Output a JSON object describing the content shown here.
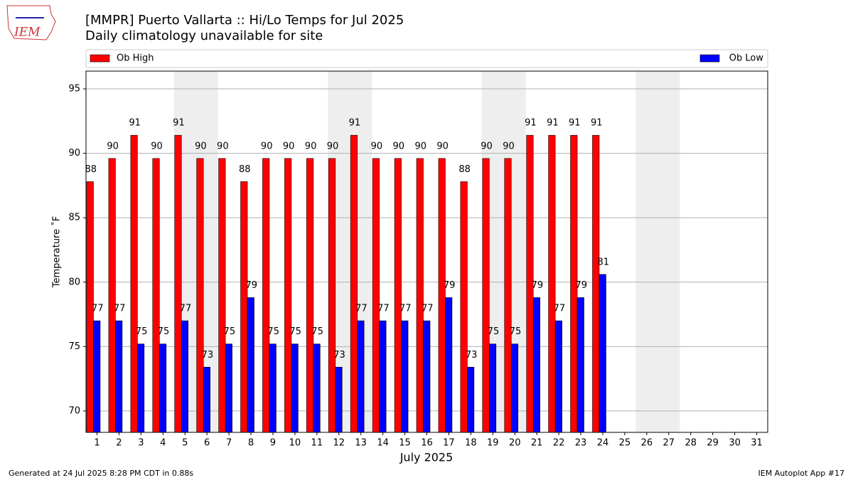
{
  "logo_text": "IEM",
  "chart_data": {
    "type": "bar",
    "title": "[MMPR] Puerto Vallarta :: Hi/Lo Temps for Jul 2025",
    "subtitle": "Daily climatology unavailable for site",
    "ylabel": "Temperature ˚F",
    "xlabel": "July 2025",
    "footer_left": "Generated at 24 Jul 2025 8:28 PM CDT in 0.88s",
    "footer_right": "IEM Autoplot App #17",
    "categories": [
      "1",
      "2",
      "3",
      "4",
      "5",
      "6",
      "7",
      "8",
      "9",
      "10",
      "11",
      "12",
      "13",
      "14",
      "15",
      "16",
      "17",
      "18",
      "19",
      "20",
      "21",
      "22",
      "23",
      "24",
      "25",
      "26",
      "27",
      "28",
      "29",
      "30",
      "31"
    ],
    "series": [
      {
        "name": "Ob High",
        "color": "#ff0000",
        "values": [
          87.8,
          89.6,
          91.4,
          89.6,
          91.4,
          89.6,
          89.6,
          87.8,
          89.6,
          89.6,
          89.6,
          89.6,
          91.4,
          89.6,
          89.6,
          89.6,
          89.6,
          87.8,
          89.6,
          89.6,
          91.4,
          91.4,
          91.4,
          91.4,
          null,
          null,
          null,
          null,
          null,
          null,
          null
        ],
        "value_labels": [
          "88",
          "90",
          "91",
          "90",
          "91",
          "90",
          "90",
          "88",
          "90",
          "90",
          "90",
          "90",
          "91",
          "90",
          "90",
          "90",
          "90",
          "88",
          "90",
          "90",
          "91",
          "91",
          "91",
          "91",
          null,
          null,
          null,
          null,
          null,
          null,
          null
        ]
      },
      {
        "name": "Ob Low",
        "color": "#0000ff",
        "values": [
          77,
          77,
          75.2,
          75.2,
          77,
          73.4,
          75.2,
          78.8,
          75.2,
          75.2,
          75.2,
          73.4,
          77,
          77,
          77,
          77,
          78.8,
          73.4,
          75.2,
          75.2,
          78.8,
          77,
          78.8,
          80.6,
          null,
          null,
          null,
          null,
          null,
          null,
          null
        ],
        "value_labels": [
          "77",
          "77",
          "75",
          "75",
          "77",
          "73",
          "75",
          "79",
          "75",
          "75",
          "75",
          "73",
          "77",
          "77",
          "77",
          "77",
          "79",
          "73",
          "75",
          "75",
          "79",
          "77",
          "79",
          "81",
          null,
          null,
          null,
          null,
          null,
          null,
          null
        ]
      }
    ],
    "shaded_categories": [
      "5",
      "6",
      "12",
      "13",
      "19",
      "20",
      "26",
      "27"
    ],
    "shade_color": "#eeeeee",
    "ylim": [
      68.34,
      96.38
    ],
    "yticks": [
      70,
      75,
      80,
      85,
      90,
      95
    ],
    "grid": true
  }
}
